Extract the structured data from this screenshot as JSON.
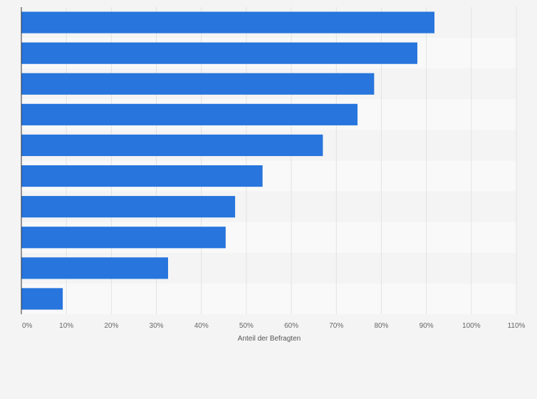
{
  "chart_data": {
    "type": "bar",
    "orientation": "horizontal",
    "categories": [
      "",
      "",
      "",
      "",
      "",
      "",
      "",
      "",
      "",
      ""
    ],
    "values": [
      91.8,
      88,
      78.4,
      74.7,
      67,
      53.6,
      47.5,
      45.4,
      32.6,
      9.2
    ],
    "title": "",
    "xlabel": "Anteil der Befragten",
    "ylabel": "",
    "xlim": [
      0,
      110
    ],
    "x_ticks": [
      0,
      10,
      20,
      30,
      40,
      50,
      60,
      70,
      80,
      90,
      100,
      110
    ],
    "x_tick_labels": [
      "0%",
      "10%",
      "20%",
      "30%",
      "40%",
      "50%",
      "60%",
      "70%",
      "80%",
      "90%",
      "100%",
      "110%"
    ],
    "grid": true,
    "bar_color": "#2775dd"
  }
}
